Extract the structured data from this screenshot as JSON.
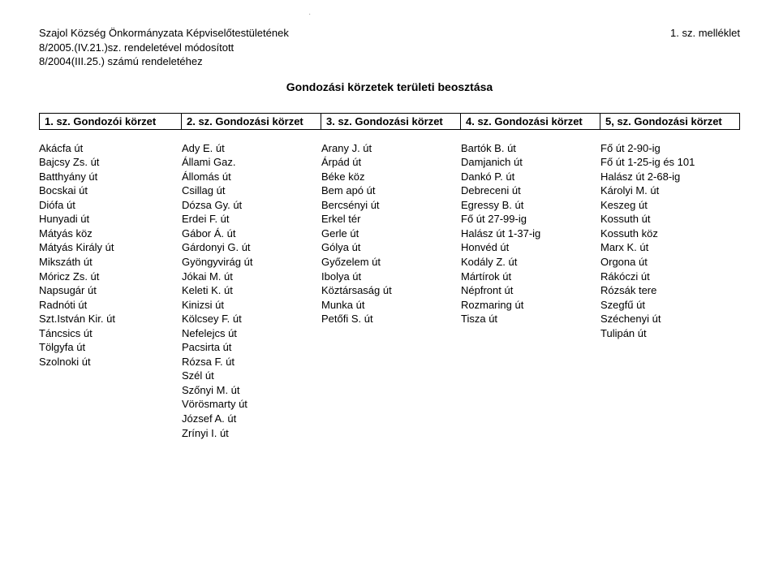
{
  "header": {
    "line1": "Szajol Község Önkormányzata Képviselőtestületének",
    "line2": "8/2005.(IV.21.)sz. rendeletével módosított",
    "line3": "8/2004(III.25.) számú rendeletéhez",
    "attachment": "1. sz. melléklet"
  },
  "title": "Gondozási körzetek területi beosztása",
  "zones": {
    "z1": "1. sz. Gondozói körzet",
    "z2": "2. sz. Gondozási körzet",
    "z3": "3. sz. Gondozási körzet",
    "z4": "4. sz. Gondozási körzet",
    "z5": "5, sz. Gondozási körzet"
  },
  "col1": [
    "Akácfa út",
    "Bajcsy Zs. út",
    "Batthyány út",
    "Bocskai út",
    "Diófa út",
    "Hunyadi út",
    "Mátyás köz",
    "Mátyás Király út",
    "Mikszáth út",
    "Móricz Zs. út",
    "Napsugár út",
    "Radnóti út",
    "Szt.István Kir. út",
    "Táncsics út",
    "Tölgyfa út",
    "Szolnoki út"
  ],
  "col2": [
    "Ady E. út",
    "Állami Gaz.",
    "Állomás út",
    "Csillag út",
    "Dózsa Gy. út",
    "Erdei F. út",
    "Gábor Á. út",
    "Gárdonyi G. út",
    "Gyöngyvirág út",
    "Jókai M. út",
    "Keleti K. út",
    "Kinizsi út",
    "Kölcsey F. út",
    "Nefelejcs út",
    "Pacsirta út",
    "Rózsa F. út",
    "Szél út",
    "Szőnyi M. út",
    "Vörösmarty út",
    "József A. út",
    "Zrínyi I. út"
  ],
  "col3": [
    "Arany J. út",
    "Árpád út",
    "Béke köz",
    "Bem apó út",
    "Bercsényi út",
    "Erkel tér",
    "Gerle út",
    "Gólya út",
    "Győzelem út",
    "Ibolya út",
    "Köztársaság út",
    "Munka út",
    "Petőfi S. út"
  ],
  "col4": [
    "Bartók B. út",
    "Damjanich út",
    "Dankó P. út",
    "Debreceni út",
    "Egressy B. út",
    "Fő út 27-99-ig",
    "Halász út 1-37-ig",
    "Honvéd út",
    "Kodály Z. út",
    "Mártírok út",
    "Népfront út",
    "Rozmaring út",
    "Tisza út"
  ],
  "col5": [
    "Fő út 2-90-ig",
    "Fő út 1-25-ig és 101",
    "Halász út 2-68-ig",
    "Károlyi M. út",
    "Keszeg út",
    "Kossuth út",
    "Kossuth köz",
    "Marx K. út",
    "Orgona út",
    "Rákóczi út",
    "Rózsák tere",
    "Szegfű út",
    "Széchenyi út",
    "Tulipán út"
  ]
}
